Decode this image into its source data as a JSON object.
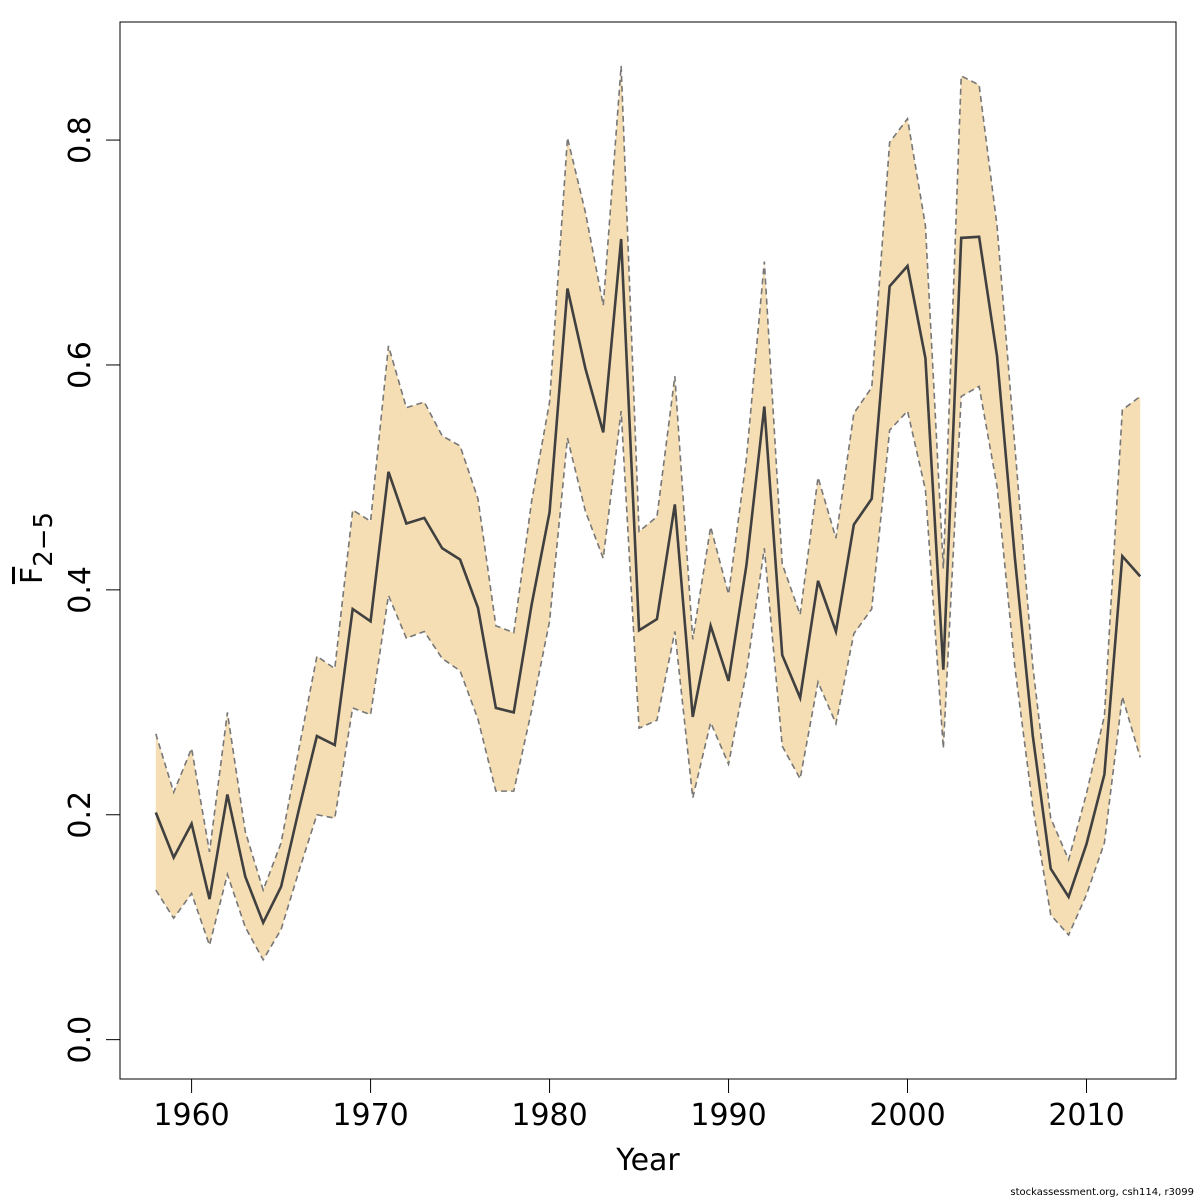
{
  "colors": {
    "band_fill": "#f5deb3",
    "band_edge": "#777777",
    "line": "#404040",
    "axis": "#000000"
  },
  "footer": "stockassessment.org, csh114, r3099",
  "chart_data": {
    "type": "line",
    "title": "",
    "xlabel": "Year",
    "ylabel_base": "F",
    "ylabel_sub": "2−5",
    "xlim": [
      1956,
      2015
    ],
    "ylim": [
      -0.035,
      0.905
    ],
    "xticks": [
      1960,
      1970,
      1980,
      1990,
      2000,
      2010
    ],
    "yticks": [
      0.0,
      0.2,
      0.4,
      0.6,
      0.8
    ],
    "ytick_labels": [
      "0.0",
      "0.2",
      "0.4",
      "0.6",
      "0.8"
    ],
    "grid": false,
    "legend": "none",
    "x": [
      1958,
      1959,
      1960,
      1961,
      1962,
      1963,
      1964,
      1965,
      1966,
      1967,
      1968,
      1969,
      1970,
      1971,
      1972,
      1973,
      1974,
      1975,
      1976,
      1977,
      1978,
      1979,
      1980,
      1981,
      1982,
      1983,
      1984,
      1985,
      1986,
      1987,
      1988,
      1989,
      1990,
      1991,
      1992,
      1993,
      1994,
      1995,
      1996,
      1997,
      1998,
      1999,
      2000,
      2001,
      2002,
      2003,
      2004,
      2005,
      2006,
      2007,
      2008,
      2009,
      2010,
      2011,
      2012,
      2013
    ],
    "series": [
      {
        "role": "estimate",
        "values": [
          0.202,
          0.162,
          0.192,
          0.125,
          0.218,
          0.145,
          0.104,
          0.136,
          0.205,
          0.27,
          0.262,
          0.383,
          0.372,
          0.505,
          0.459,
          0.464,
          0.437,
          0.427,
          0.384,
          0.295,
          0.291,
          0.387,
          0.469,
          0.668,
          0.597,
          0.54,
          0.712,
          0.364,
          0.374,
          0.476,
          0.287,
          0.368,
          0.319,
          0.422,
          0.563,
          0.342,
          0.304,
          0.408,
          0.363,
          0.458,
          0.481,
          0.67,
          0.688,
          0.606,
          0.329,
          0.713,
          0.714,
          0.608,
          0.428,
          0.27,
          0.152,
          0.127,
          0.174,
          0.236,
          0.43,
          0.412
        ]
      },
      {
        "role": "upper",
        "values": [
          0.272,
          0.22,
          0.259,
          0.167,
          0.291,
          0.185,
          0.133,
          0.175,
          0.259,
          0.341,
          0.33,
          0.471,
          0.461,
          0.617,
          0.562,
          0.567,
          0.537,
          0.528,
          0.481,
          0.368,
          0.362,
          0.479,
          0.567,
          0.802,
          0.736,
          0.653,
          0.866,
          0.452,
          0.465,
          0.59,
          0.356,
          0.456,
          0.396,
          0.517,
          0.692,
          0.423,
          0.378,
          0.5,
          0.446,
          0.557,
          0.58,
          0.798,
          0.819,
          0.724,
          0.419,
          0.857,
          0.849,
          0.724,
          0.527,
          0.332,
          0.197,
          0.16,
          0.219,
          0.288,
          0.56,
          0.572
        ]
      },
      {
        "role": "lower",
        "values": [
          0.133,
          0.108,
          0.13,
          0.084,
          0.147,
          0.1,
          0.071,
          0.098,
          0.15,
          0.2,
          0.197,
          0.295,
          0.289,
          0.395,
          0.357,
          0.363,
          0.339,
          0.328,
          0.285,
          0.221,
          0.221,
          0.293,
          0.372,
          0.535,
          0.47,
          0.428,
          0.559,
          0.277,
          0.284,
          0.363,
          0.215,
          0.282,
          0.245,
          0.327,
          0.437,
          0.261,
          0.232,
          0.318,
          0.281,
          0.361,
          0.383,
          0.542,
          0.559,
          0.489,
          0.259,
          0.572,
          0.581,
          0.492,
          0.331,
          0.207,
          0.111,
          0.093,
          0.129,
          0.175,
          0.305,
          0.251
        ]
      }
    ]
  }
}
